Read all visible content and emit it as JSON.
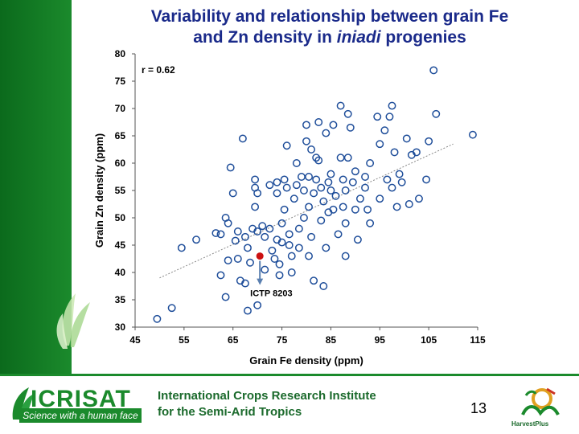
{
  "slide": {
    "title_line1": "Variability and relationship between grain Fe",
    "title_line2_pre": "and Zn density in ",
    "title_line2_italic": "iniadi",
    "title_line2_post": " progenies",
    "page_number": "13"
  },
  "footer": {
    "org_short": "ICRISAT",
    "org_tagline": "Science with a human face",
    "org_line1": "International Crops Research Institute",
    "org_line2": "for the Semi-Arid Tropics",
    "partner": "HarvestPlus"
  },
  "colors": {
    "title": "#1a2a8a",
    "brand_green": "#1b8a2c",
    "marker": "#1f4e9a",
    "highlight": "#cc1111",
    "trendline": "#888888"
  },
  "chart_data": {
    "type": "scatter",
    "title": "",
    "xlabel": "Grain Fe density (ppm)",
    "ylabel": "Grain Zn density (ppm)",
    "xlim": [
      45,
      115
    ],
    "ylim": [
      30,
      80
    ],
    "xticks": [
      45,
      55,
      65,
      75,
      85,
      95,
      105,
      115
    ],
    "yticks": [
      30,
      35,
      40,
      45,
      50,
      55,
      60,
      65,
      70,
      75,
      80
    ],
    "grid": false,
    "annotations": [
      {
        "text": "r = 0.62"
      },
      {
        "text": "ICTP 8203",
        "x": 70.5,
        "y": 43.0
      }
    ],
    "trendline": {
      "x": [
        50,
        110
      ],
      "y": [
        39.0,
        63.5
      ]
    },
    "highlight_point": {
      "label": "ICTP 8203",
      "x": 70.5,
      "y": 43.0
    },
    "series": [
      {
        "points": [
          [
            49.5,
            31.5
          ],
          [
            52.5,
            33.5
          ],
          [
            54.5,
            44.5
          ],
          [
            57.5,
            46.0
          ],
          [
            61.5,
            47.2
          ],
          [
            62.5,
            47.0
          ],
          [
            62.5,
            39.5
          ],
          [
            63.5,
            50.0
          ],
          [
            64.0,
            49.0
          ],
          [
            64.0,
            42.2
          ],
          [
            63.5,
            35.5
          ],
          [
            64.5,
            59.2
          ],
          [
            65.0,
            54.5
          ],
          [
            65.5,
            45.8
          ],
          [
            66.0,
            47.5
          ],
          [
            66.0,
            42.5
          ],
          [
            66.5,
            38.5
          ],
          [
            67.0,
            64.5
          ],
          [
            67.5,
            38.0
          ],
          [
            67.5,
            46.5
          ],
          [
            68.0,
            44.5
          ],
          [
            68.0,
            33.0
          ],
          [
            68.5,
            41.8
          ],
          [
            69.0,
            48.0
          ],
          [
            69.5,
            57.0
          ],
          [
            69.5,
            55.5
          ],
          [
            69.5,
            52.0
          ],
          [
            70.0,
            54.5
          ],
          [
            70.0,
            47.5
          ],
          [
            70.0,
            34.0
          ],
          [
            71.0,
            48.5
          ],
          [
            71.5,
            40.5
          ],
          [
            71.5,
            46.5
          ],
          [
            72.5,
            56.0
          ],
          [
            72.5,
            48.0
          ],
          [
            73.0,
            44.0
          ],
          [
            73.5,
            42.5
          ],
          [
            74.0,
            56.5
          ],
          [
            74.0,
            54.5
          ],
          [
            74.0,
            46.0
          ],
          [
            74.5,
            41.5
          ],
          [
            74.5,
            39.5
          ],
          [
            75.0,
            49.0
          ],
          [
            75.0,
            45.5
          ],
          [
            75.5,
            57.0
          ],
          [
            75.5,
            51.5
          ],
          [
            76.0,
            63.2
          ],
          [
            76.0,
            55.5
          ],
          [
            76.5,
            45.0
          ],
          [
            76.5,
            47.0
          ],
          [
            77.0,
            43.0
          ],
          [
            77.0,
            40.0
          ],
          [
            77.5,
            53.5
          ],
          [
            78.0,
            56.0
          ],
          [
            78.0,
            60.0
          ],
          [
            78.5,
            48.0
          ],
          [
            78.5,
            44.5
          ],
          [
            79.0,
            57.5
          ],
          [
            79.5,
            55.0
          ],
          [
            79.5,
            50.0
          ],
          [
            80.0,
            67.0
          ],
          [
            80.0,
            64.0
          ],
          [
            80.5,
            57.5
          ],
          [
            80.5,
            52.0
          ],
          [
            80.5,
            43.0
          ],
          [
            81.0,
            62.5
          ],
          [
            81.0,
            46.5
          ],
          [
            81.5,
            54.5
          ],
          [
            81.5,
            38.5
          ],
          [
            82.0,
            61.0
          ],
          [
            82.0,
            57.0
          ],
          [
            82.5,
            60.5
          ],
          [
            82.5,
            67.5
          ],
          [
            83.0,
            55.5
          ],
          [
            83.0,
            49.5
          ],
          [
            83.5,
            53.0
          ],
          [
            83.5,
            37.5
          ],
          [
            84.0,
            65.5
          ],
          [
            84.0,
            44.5
          ],
          [
            84.5,
            56.5
          ],
          [
            84.5,
            51.0
          ],
          [
            85.0,
            58.0
          ],
          [
            85.0,
            55.0
          ],
          [
            85.5,
            67.0
          ],
          [
            85.5,
            51.5
          ],
          [
            86.0,
            54.0
          ],
          [
            86.5,
            47.0
          ],
          [
            87.0,
            61.0
          ],
          [
            87.0,
            70.5
          ],
          [
            87.5,
            57.0
          ],
          [
            87.5,
            52.0
          ],
          [
            88.0,
            55.0
          ],
          [
            88.0,
            49.0
          ],
          [
            88.0,
            43.0
          ],
          [
            88.5,
            69.0
          ],
          [
            88.5,
            61.0
          ],
          [
            89.0,
            66.5
          ],
          [
            89.5,
            56.5
          ],
          [
            90.0,
            58.5
          ],
          [
            90.0,
            51.5
          ],
          [
            90.5,
            46.0
          ],
          [
            91.0,
            53.5
          ],
          [
            92.0,
            57.5
          ],
          [
            92.0,
            55.5
          ],
          [
            92.5,
            51.5
          ],
          [
            93.0,
            60.0
          ],
          [
            93.0,
            49.0
          ],
          [
            94.5,
            68.5
          ],
          [
            95.0,
            63.5
          ],
          [
            95.0,
            53.5
          ],
          [
            96.0,
            66.0
          ],
          [
            96.5,
            57.0
          ],
          [
            97.0,
            68.5
          ],
          [
            97.5,
            70.5
          ],
          [
            97.5,
            55.5
          ],
          [
            98.0,
            62.0
          ],
          [
            98.5,
            52.0
          ],
          [
            99.0,
            58.0
          ],
          [
            99.5,
            56.5
          ],
          [
            100.5,
            64.5
          ],
          [
            101.0,
            52.5
          ],
          [
            101.5,
            61.5
          ],
          [
            102.5,
            62.0
          ],
          [
            103.0,
            53.5
          ],
          [
            104.5,
            57.0
          ],
          [
            105.0,
            64.0
          ],
          [
            106.0,
            77.0
          ],
          [
            106.5,
            69.0
          ],
          [
            114.0,
            65.2
          ]
        ]
      }
    ]
  }
}
